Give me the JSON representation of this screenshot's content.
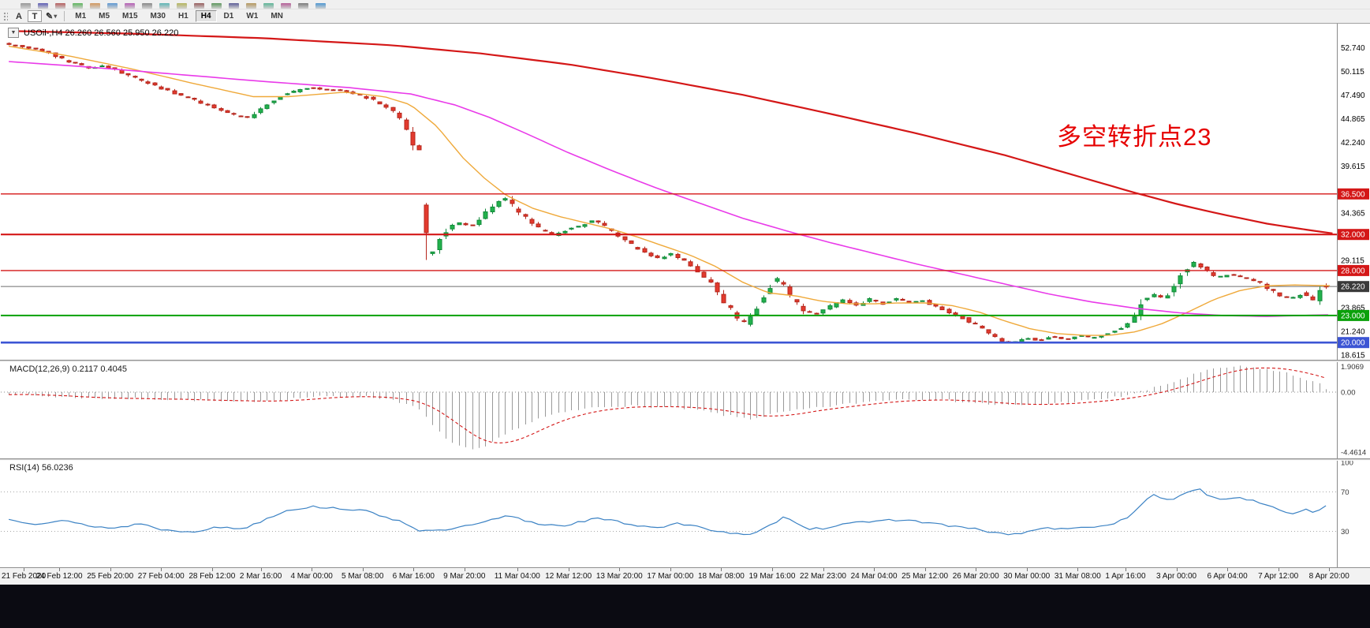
{
  "toolbar": {
    "timeframes": [
      "M1",
      "M5",
      "M15",
      "M30",
      "H1",
      "H4",
      "D1",
      "W1",
      "MN"
    ],
    "selected_timeframe": "H4",
    "text_tool_label": "A",
    "textbox_tool_label": "T",
    "icons": {
      "one_click": "▼",
      "pencil": "✎",
      "dropdown": "▾"
    }
  },
  "chart": {
    "symbol_info": "USOil-,H4 26.260 26.560 25.950 26.220",
    "annotation": "多空转折点23"
  },
  "indicators": {
    "macd_label": "MACD(12,26,9) 0.2117 0.4045",
    "rsi_label": "RSI(14) 56.0236"
  },
  "colors": {
    "candle_up": "#22b14c",
    "candle_up_line": "#128a3a",
    "candle_down": "#e23a2e",
    "candle_down_line": "#b5261c",
    "ma_fast": "#efa93a",
    "ma_slow": "#e93ae9",
    "ma_long": "#d41717",
    "annotation_red": "#e60000",
    "tag_red": "#d41717",
    "tag_green": "#0aa10a",
    "tag_blue": "#3c55d4",
    "tag_bid": "#3a3a3a",
    "macd_bars": "#9a9a9a",
    "macd_signal": "#d41717",
    "rsi_line": "#3b82c4"
  },
  "chart_data": {
    "type": "candlestick",
    "symbol": "USOil-",
    "period": "H4",
    "quote": {
      "open": 26.26,
      "high": 26.56,
      "low": 25.95,
      "close": 26.22
    },
    "num_candles": 200,
    "y_axis": {
      "tick_base": 18.615,
      "tick_step": 2.625,
      "min": 18.1,
      "max": 55.4
    },
    "x_labels": [
      "21 Feb 2020",
      "24 Feb 12:00",
      "25 Feb 20:00",
      "27 Feb 04:00",
      "28 Feb 12:00",
      "2 Mar 16:00",
      "4 Mar 00:00",
      "5 Mar 08:00",
      "6 Mar 16:00",
      "9 Mar 20:00",
      "11 Mar 04:00",
      "12 Mar 12:00",
      "13 Mar 20:00",
      "17 Mar 00:00",
      "18 Mar 08:00",
      "19 Mar 16:00",
      "22 Mar 23:00",
      "24 Mar 04:00",
      "25 Mar 12:00",
      "26 Mar 20:00",
      "30 Mar 00:00",
      "31 Mar 08:00",
      "1 Apr 16:00",
      "3 Apr 00:00",
      "6 Apr 04:00",
      "7 Apr 12:00",
      "8 Apr 20:00"
    ],
    "price_path": [
      [
        0,
        53.2
      ],
      [
        3,
        52.8
      ],
      [
        6.6,
        52.3
      ],
      [
        9,
        51.4
      ],
      [
        13.2,
        50.4
      ],
      [
        15,
        50.8
      ],
      [
        18.5,
        49.7
      ],
      [
        21,
        49.0
      ],
      [
        23.1,
        48.4
      ],
      [
        26,
        47.6
      ],
      [
        28.4,
        47.0
      ],
      [
        31,
        46.3
      ],
      [
        33,
        45.8
      ],
      [
        35,
        45.2
      ],
      [
        37,
        45.0
      ],
      [
        39.6,
        46.4
      ],
      [
        42.2,
        47.6
      ],
      [
        44,
        47.9
      ],
      [
        46.2,
        48.3
      ],
      [
        48,
        48.1
      ],
      [
        50.8,
        48.0
      ],
      [
        52.5,
        47.7
      ],
      [
        54.1,
        47.4
      ],
      [
        55.8,
        46.9
      ],
      [
        57.4,
        46.3
      ],
      [
        58.8,
        45.6
      ],
      [
        60.1,
        44.7
      ],
      [
        61.3,
        42.9
      ],
      [
        62,
        41.7
      ],
      [
        62.9,
        41.4
      ],
      [
        63.1,
        31.8
      ],
      [
        63.8,
        30.3
      ],
      [
        64.3,
        29.3
      ],
      [
        65.3,
        31.2
      ],
      [
        66.7,
        32.4
      ],
      [
        68.6,
        33.4
      ],
      [
        70.6,
        32.9
      ],
      [
        72.3,
        34.1
      ],
      [
        74.2,
        35.2
      ],
      [
        75.5,
        36.1
      ],
      [
        76.3,
        35.6
      ],
      [
        77.2,
        34.7
      ],
      [
        79.2,
        33.6
      ],
      [
        81.2,
        32.4
      ],
      [
        83.2,
        31.9
      ],
      [
        85.1,
        32.6
      ],
      [
        87.1,
        33.0
      ],
      [
        89.1,
        33.6
      ],
      [
        91.1,
        32.7
      ],
      [
        93.1,
        31.7
      ],
      [
        95,
        30.7
      ],
      [
        97,
        29.9
      ],
      [
        99,
        29.4
      ],
      [
        101,
        29.9
      ],
      [
        103,
        28.9
      ],
      [
        104.9,
        27.7
      ],
      [
        106.9,
        26.5
      ],
      [
        108.9,
        24.4
      ],
      [
        110.6,
        22.7
      ],
      [
        111.9,
        22.1
      ],
      [
        113.3,
        23.4
      ],
      [
        114.9,
        25.3
      ],
      [
        116.4,
        27.2
      ],
      [
        117.8,
        26.4
      ],
      [
        119.1,
        24.9
      ],
      [
        120.8,
        23.5
      ],
      [
        122.8,
        23.2
      ],
      [
        124.8,
        24.0
      ],
      [
        126.7,
        24.7
      ],
      [
        128.7,
        24.1
      ],
      [
        130.7,
        24.8
      ],
      [
        132.7,
        24.3
      ],
      [
        134.7,
        24.9
      ],
      [
        136.6,
        24.4
      ],
      [
        138.6,
        24.7
      ],
      [
        140.6,
        24.0
      ],
      [
        142.6,
        23.4
      ],
      [
        144.6,
        22.8
      ],
      [
        146.5,
        22.1
      ],
      [
        148.5,
        21.1
      ],
      [
        150.5,
        20.2
      ],
      [
        152.5,
        20.0
      ],
      [
        154.5,
        20.5
      ],
      [
        156.4,
        20.2
      ],
      [
        158.4,
        20.7
      ],
      [
        160.4,
        20.3
      ],
      [
        162.4,
        20.8
      ],
      [
        164.4,
        20.5
      ],
      [
        166.3,
        20.9
      ],
      [
        168.3,
        21.5
      ],
      [
        170.3,
        22.3
      ],
      [
        171.9,
        24.6
      ],
      [
        173.6,
        25.3
      ],
      [
        175.3,
        25.0
      ],
      [
        176.9,
        26.4
      ],
      [
        178.5,
        28.2
      ],
      [
        179.8,
        28.9
      ],
      [
        181.5,
        28.0
      ],
      [
        183.2,
        27.2
      ],
      [
        185.1,
        27.6
      ],
      [
        187.1,
        27.2
      ],
      [
        189,
        26.9
      ],
      [
        191,
        26.0
      ],
      [
        192.7,
        25.2
      ],
      [
        194.5,
        24.9
      ],
      [
        196,
        25.4
      ],
      [
        197.8,
        24.7
      ],
      [
        199,
        25.9
      ]
    ],
    "ma_fast_path": [
      [
        10,
        52.9
      ],
      [
        80,
        51.8
      ],
      [
        150,
        50.4
      ],
      [
        220,
        48.8
      ],
      [
        290,
        47.3
      ],
      [
        330,
        47.3
      ],
      [
        395,
        47.8
      ],
      [
        440,
        47.3
      ],
      [
        470,
        46.4
      ],
      [
        500,
        44.0
      ],
      [
        530,
        40.5
      ],
      [
        555,
        38.2
      ],
      [
        580,
        36.3
      ],
      [
        610,
        34.9
      ],
      [
        640,
        34.0
      ],
      [
        670,
        33.3
      ],
      [
        700,
        32.6
      ],
      [
        730,
        31.7
      ],
      [
        760,
        30.7
      ],
      [
        790,
        29.7
      ],
      [
        820,
        28.4
      ],
      [
        850,
        26.7
      ],
      [
        880,
        25.5
      ],
      [
        910,
        25.2
      ],
      [
        940,
        24.6
      ],
      [
        970,
        24.3
      ],
      [
        1000,
        24.3
      ],
      [
        1030,
        24.4
      ],
      [
        1060,
        24.4
      ],
      [
        1090,
        24.1
      ],
      [
        1120,
        23.4
      ],
      [
        1150,
        22.4
      ],
      [
        1180,
        21.5
      ],
      [
        1210,
        21.0
      ],
      [
        1240,
        20.8
      ],
      [
        1270,
        20.8
      ],
      [
        1300,
        21.2
      ],
      [
        1330,
        22.1
      ],
      [
        1360,
        23.4
      ],
      [
        1390,
        24.8
      ],
      [
        1420,
        25.8
      ],
      [
        1450,
        26.3
      ],
      [
        1480,
        26.4
      ],
      [
        1527,
        26.3
      ]
    ],
    "ma_slow_path": [
      [
        10,
        51.2
      ],
      [
        100,
        50.6
      ],
      [
        200,
        49.8
      ],
      [
        300,
        49.0
      ],
      [
        400,
        48.3
      ],
      [
        470,
        47.6
      ],
      [
        520,
        46.4
      ],
      [
        560,
        45.0
      ],
      [
        600,
        43.3
      ],
      [
        650,
        41.1
      ],
      [
        700,
        39.1
      ],
      [
        750,
        37.2
      ],
      [
        800,
        35.5
      ],
      [
        850,
        33.8
      ],
      [
        900,
        32.4
      ],
      [
        950,
        31.1
      ],
      [
        1000,
        29.9
      ],
      [
        1050,
        28.7
      ],
      [
        1100,
        27.6
      ],
      [
        1150,
        26.5
      ],
      [
        1200,
        25.4
      ],
      [
        1250,
        24.5
      ],
      [
        1300,
        23.8
      ],
      [
        1350,
        23.3
      ],
      [
        1400,
        23.0
      ],
      [
        1450,
        22.9
      ],
      [
        1527,
        23.1
      ]
    ],
    "ma_long_path": [
      [
        10,
        54.6
      ],
      [
        150,
        54.3
      ],
      [
        300,
        53.8
      ],
      [
        450,
        53.0
      ],
      [
        550,
        52.1
      ],
      [
        650,
        50.9
      ],
      [
        750,
        49.3
      ],
      [
        850,
        47.5
      ],
      [
        950,
        45.4
      ],
      [
        1050,
        43.2
      ],
      [
        1150,
        40.8
      ],
      [
        1250,
        38.0
      ],
      [
        1300,
        36.6
      ],
      [
        1350,
        35.3
      ],
      [
        1400,
        34.2
      ],
      [
        1450,
        33.2
      ],
      [
        1490,
        32.6
      ],
      [
        1530,
        32.05
      ]
    ],
    "hlines": [
      {
        "price": 36.5,
        "label": "36.500",
        "color": "#d41717",
        "width": 1.4
      },
      {
        "price": 32.0,
        "label": "32.000",
        "color": "#d41717",
        "width": 2.2
      },
      {
        "price": 28.0,
        "label": "28.000",
        "color": "#d41717",
        "width": 1.4
      },
      {
        "price": 23.0,
        "label": "23.000",
        "color": "#0aa10a",
        "width": 2
      },
      {
        "price": 20.0,
        "label": "20.000",
        "color": "#3c55d4",
        "width": 2.6
      }
    ],
    "current_price": {
      "value": 26.22,
      "label": "26.220"
    },
    "macd": {
      "line_value": 0.2117,
      "signal_value": 0.4045,
      "scale": [
        "1.9069",
        "0.00",
        "-4.4614"
      ],
      "path": [
        [
          0,
          -0.1
        ],
        [
          6.6,
          -0.35
        ],
        [
          13.2,
          -0.45
        ],
        [
          19.8,
          -0.5
        ],
        [
          26.4,
          -0.55
        ],
        [
          33,
          -0.75
        ],
        [
          39.6,
          -0.6
        ],
        [
          46.2,
          -0.35
        ],
        [
          52.8,
          -0.3
        ],
        [
          58.1,
          -0.55
        ],
        [
          62,
          -1.3
        ],
        [
          64.7,
          -2.9
        ],
        [
          67.3,
          -3.9
        ],
        [
          70,
          -4.35
        ],
        [
          71.9,
          -4.1
        ],
        [
          73.9,
          -3.5
        ],
        [
          76.6,
          -2.7
        ],
        [
          80.5,
          -1.9
        ],
        [
          84.5,
          -1.45
        ],
        [
          88.4,
          -1.15
        ],
        [
          92.4,
          -1.0
        ],
        [
          96.4,
          -1.1
        ],
        [
          100.3,
          -1.15
        ],
        [
          104.3,
          -1.35
        ],
        [
          108.3,
          -1.75
        ],
        [
          112.2,
          -2.0
        ],
        [
          116.2,
          -1.55
        ],
        [
          120.1,
          -1.3
        ],
        [
          124.1,
          -1.05
        ],
        [
          128.1,
          -0.8
        ],
        [
          132,
          -0.6
        ],
        [
          136,
          -0.5
        ],
        [
          139.9,
          -0.55
        ],
        [
          143.9,
          -0.7
        ],
        [
          147.9,
          -0.9
        ],
        [
          151.8,
          -1.0
        ],
        [
          155.8,
          -0.9
        ],
        [
          159.7,
          -0.75
        ],
        [
          163.7,
          -0.6
        ],
        [
          167.7,
          -0.35
        ],
        [
          171.6,
          0.1
        ],
        [
          175.6,
          0.7
        ],
        [
          179.5,
          1.4
        ],
        [
          182.8,
          1.8
        ],
        [
          186.1,
          1.9
        ],
        [
          189.4,
          1.75
        ],
        [
          192.7,
          1.45
        ],
        [
          196,
          0.95
        ],
        [
          198.7,
          0.5
        ],
        [
          199,
          0.21
        ]
      ]
    },
    "rsi": {
      "value": 56.0236,
      "levels": [
        100,
        70,
        30
      ],
      "path": [
        [
          10,
          42
        ],
        [
          40,
          38
        ],
        [
          70,
          41
        ],
        [
          100,
          36
        ],
        [
          130,
          33
        ],
        [
          160,
          38
        ],
        [
          190,
          31
        ],
        [
          220,
          30
        ],
        [
          250,
          34
        ],
        [
          280,
          33
        ],
        [
          310,
          45
        ],
        [
          330,
          52
        ],
        [
          360,
          55
        ],
        [
          395,
          53
        ],
        [
          420,
          50
        ],
        [
          445,
          44
        ],
        [
          465,
          38
        ],
        [
          480,
          31
        ],
        [
          500,
          30
        ],
        [
          520,
          33
        ],
        [
          545,
          37
        ],
        [
          570,
          43
        ],
        [
          582,
          46
        ],
        [
          600,
          41
        ],
        [
          620,
          37
        ],
        [
          645,
          36
        ],
        [
          665,
          40
        ],
        [
          685,
          43
        ],
        [
          705,
          40
        ],
        [
          730,
          36
        ],
        [
          755,
          34
        ],
        [
          775,
          38
        ],
        [
          800,
          34
        ],
        [
          820,
          31
        ],
        [
          845,
          27
        ],
        [
          860,
          26
        ],
        [
          880,
          35
        ],
        [
          895,
          44
        ],
        [
          910,
          40
        ],
        [
          925,
          33
        ],
        [
          945,
          33
        ],
        [
          960,
          37
        ],
        [
          975,
          40
        ],
        [
          995,
          38
        ],
        [
          1010,
          41
        ],
        [
          1030,
          42
        ],
        [
          1050,
          40
        ],
        [
          1070,
          38
        ],
        [
          1090,
          35
        ],
        [
          1110,
          33
        ],
        [
          1130,
          30
        ],
        [
          1150,
          27
        ],
        [
          1165,
          27
        ],
        [
          1185,
          32
        ],
        [
          1205,
          33
        ],
        [
          1225,
          32
        ],
        [
          1245,
          35
        ],
        [
          1265,
          35
        ],
        [
          1285,
          42
        ],
        [
          1300,
          50
        ],
        [
          1312,
          62
        ],
        [
          1320,
          68
        ],
        [
          1330,
          64
        ],
        [
          1340,
          60
        ],
        [
          1352,
          66
        ],
        [
          1362,
          71
        ],
        [
          1372,
          74
        ],
        [
          1382,
          67
        ],
        [
          1395,
          62
        ],
        [
          1410,
          65
        ],
        [
          1425,
          62
        ],
        [
          1440,
          60
        ],
        [
          1455,
          55
        ],
        [
          1470,
          50
        ],
        [
          1483,
          48
        ],
        [
          1495,
          53
        ],
        [
          1505,
          49
        ],
        [
          1515,
          52
        ],
        [
          1527,
          56
        ]
      ]
    }
  }
}
